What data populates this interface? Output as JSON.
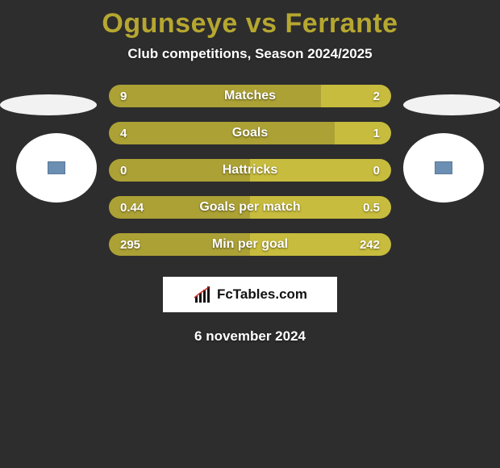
{
  "background_color": "#2d2d2d",
  "title": {
    "text": "Ogunseye vs Ferrante",
    "color": "#b6a730",
    "fontsize": 34
  },
  "subtitle": {
    "text": "Club competitions, Season 2024/2025",
    "color": "#ffffff",
    "fontsize": 17
  },
  "avatars": {
    "ellipse_color": "#f2f2f2",
    "circle_color": "#ffffff",
    "badge_color": "#6b8fb3"
  },
  "bars": {
    "left_color": "#aca135",
    "right_color": "#c7bc3d",
    "label_color": "#ffffff",
    "value_color": "#ffffff",
    "height": 28,
    "radius": 16,
    "rows": [
      {
        "label": "Matches",
        "left_val": "9",
        "right_val": "2",
        "left_pct": 75,
        "right_pct": 25
      },
      {
        "label": "Goals",
        "left_val": "4",
        "right_val": "1",
        "left_pct": 80,
        "right_pct": 20
      },
      {
        "label": "Hattricks",
        "left_val": "0",
        "right_val": "0",
        "left_pct": 50,
        "right_pct": 50
      },
      {
        "label": "Goals per match",
        "left_val": "0.44",
        "right_val": "0.5",
        "left_pct": 50,
        "right_pct": 50
      },
      {
        "label": "Min per goal",
        "left_val": "295",
        "right_val": "242",
        "left_pct": 50,
        "right_pct": 50
      }
    ]
  },
  "logo": {
    "bg_color": "#ffffff",
    "text": "FcTables.com",
    "text_color": "#111111",
    "icon_color": "#111111",
    "arrow_color": "#c8302a"
  },
  "date": {
    "text": "6 november 2024",
    "color": "#ffffff"
  }
}
